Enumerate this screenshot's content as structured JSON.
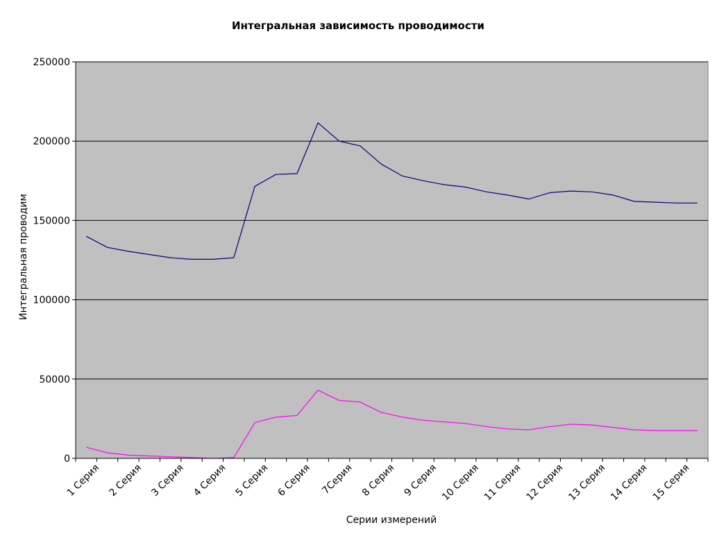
{
  "chart_data": {
    "type": "line",
    "title": "Интегральная зависимость проводимости",
    "xlabel": "Серии измерений",
    "ylabel": "Интегральная проводим",
    "ylim": [
      0,
      250000
    ],
    "yticks": [
      0,
      50000,
      100000,
      150000,
      200000,
      250000
    ],
    "grid": true,
    "plot_background": "#C0C0C0",
    "x_tick_labels": [
      "1 Серия",
      "2 Серия",
      "3 Серия",
      "4 Серия",
      "5 Серия",
      "6 Серия",
      "7Серия",
      "8 Серия",
      "9 Серия",
      "10 Серия",
      "11 Серия",
      "12 Серия",
      "13 Серия",
      "14 Серия",
      "15 Серия"
    ],
    "point_count": 30,
    "series": [
      {
        "color": "#000080",
        "values": [
          140000,
          133000,
          130500,
          128500,
          126500,
          125500,
          125500,
          126500,
          171500,
          179000,
          179500,
          211500,
          200000,
          197000,
          185500,
          178000,
          175000,
          172500,
          171000,
          168000,
          166000,
          163500,
          167500,
          168500,
          168000,
          166000,
          162000,
          161500,
          161000,
          161000
        ]
      },
      {
        "color": "#FF00FF",
        "values": [
          7000,
          3500,
          2000,
          1500,
          1000,
          500,
          0,
          500,
          22500,
          26000,
          27000,
          43000,
          36500,
          35500,
          29000,
          26000,
          24000,
          23000,
          22000,
          20000,
          18500,
          18000,
          20000,
          21500,
          21000,
          19500,
          18000,
          17500,
          17500,
          17500
        ]
      }
    ]
  }
}
